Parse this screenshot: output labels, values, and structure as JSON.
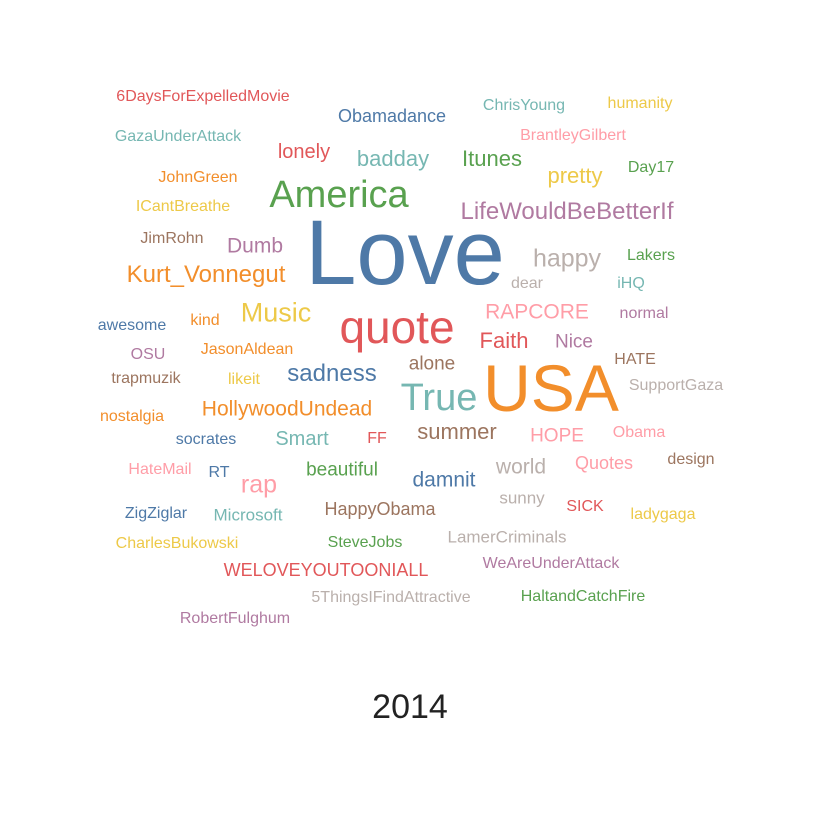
{
  "year_label": "2014",
  "palette": {
    "blue": "#4e79a7",
    "orange": "#f28e2b",
    "red": "#e15759",
    "teal": "#76b7b2",
    "green": "#59a14f",
    "yellow": "#edc948",
    "purple": "#b07aa1",
    "pink": "#ff9da7",
    "brown": "#9c755f",
    "gray": "#bab0ac"
  },
  "words": [
    {
      "text": "Love",
      "weight": 100,
      "color": "blue"
    },
    {
      "text": "USA",
      "weight": 85,
      "color": "orange"
    },
    {
      "text": "quote",
      "weight": 62,
      "color": "red"
    },
    {
      "text": "America",
      "weight": 50,
      "color": "green"
    },
    {
      "text": "True",
      "weight": 46,
      "color": "teal"
    },
    {
      "text": "LifeWouldBeBetterIf",
      "weight": 34,
      "color": "purple"
    },
    {
      "text": "Music",
      "weight": 33,
      "color": "yellow"
    },
    {
      "text": "Kurt_Vonnegut",
      "weight": 30,
      "color": "orange"
    },
    {
      "text": "happy",
      "weight": 30,
      "color": "gray"
    },
    {
      "text": "sadness",
      "weight": 28,
      "color": "blue"
    },
    {
      "text": "summer",
      "weight": 27,
      "color": "brown"
    },
    {
      "text": "HollywoodUndead",
      "weight": 26,
      "color": "orange"
    },
    {
      "text": "rap",
      "weight": 26,
      "color": "pink"
    },
    {
      "text": "pretty",
      "weight": 26,
      "color": "yellow"
    },
    {
      "text": "badday",
      "weight": 26,
      "color": "teal"
    },
    {
      "text": "RAPCORE",
      "weight": 25,
      "color": "pink"
    },
    {
      "text": "Faith",
      "weight": 25,
      "color": "red"
    },
    {
      "text": "Itunes",
      "weight": 25,
      "color": "green"
    },
    {
      "text": "damnit",
      "weight": 24,
      "color": "blue"
    },
    {
      "text": "world",
      "weight": 24,
      "color": "gray"
    },
    {
      "text": "Dumb",
      "weight": 24,
      "color": "purple"
    },
    {
      "text": "Smart",
      "weight": 23,
      "color": "teal"
    },
    {
      "text": "beautiful",
      "weight": 23,
      "color": "green"
    },
    {
      "text": "alone",
      "weight": 23,
      "color": "brown"
    },
    {
      "text": "lonely",
      "weight": 23,
      "color": "red"
    },
    {
      "text": "Nice",
      "weight": 23,
      "color": "purple"
    },
    {
      "text": "HOPE",
      "weight": 22,
      "color": "pink"
    },
    {
      "text": "Obamadance",
      "weight": 21,
      "color": "blue"
    },
    {
      "text": "HappyObama",
      "weight": 21,
      "color": "brown"
    },
    {
      "text": "Quotes",
      "weight": 20,
      "color": "pink"
    },
    {
      "text": "WELOVEYOUTOONIALL",
      "weight": 20,
      "color": "red"
    },
    {
      "text": "sunny",
      "weight": 20,
      "color": "gray"
    },
    {
      "text": "LamerCriminals",
      "weight": 20,
      "color": "gray"
    },
    {
      "text": "SteveJobs",
      "weight": 19,
      "color": "green"
    },
    {
      "text": "Microsoft",
      "weight": 19,
      "color": "teal"
    },
    {
      "text": "JohnGreen",
      "weight": 19,
      "color": "orange"
    },
    {
      "text": "ChrisYoung",
      "weight": 19,
      "color": "teal"
    },
    {
      "text": "ICantBreathe",
      "weight": 19,
      "color": "yellow"
    },
    {
      "text": "JasonAldean",
      "weight": 19,
      "color": "orange"
    },
    {
      "text": "socrates",
      "weight": 19,
      "color": "blue"
    },
    {
      "text": "likeit",
      "weight": 19,
      "color": "yellow"
    },
    {
      "text": "kind",
      "weight": 19,
      "color": "orange"
    },
    {
      "text": "SICK",
      "weight": 19,
      "color": "red"
    },
    {
      "text": "HATE",
      "weight": 18,
      "color": "brown"
    },
    {
      "text": "normal",
      "weight": 18,
      "color": "purple"
    },
    {
      "text": "Obama",
      "weight": 18,
      "color": "pink"
    },
    {
      "text": "iHQ",
      "weight": 18,
      "color": "teal"
    },
    {
      "text": "Day17",
      "weight": 18,
      "color": "green"
    },
    {
      "text": "humanity",
      "weight": 18,
      "color": "yellow"
    },
    {
      "text": "6DaysForExpelledMovie",
      "weight": 18,
      "color": "red"
    },
    {
      "text": "GazaUnderAttack",
      "weight": 18,
      "color": "teal"
    },
    {
      "text": "JimRohn",
      "weight": 18,
      "color": "brown"
    },
    {
      "text": "awesome",
      "weight": 18,
      "color": "blue"
    },
    {
      "text": "OSU",
      "weight": 18,
      "color": "purple"
    },
    {
      "text": "trapmuzik",
      "weight": 18,
      "color": "brown"
    },
    {
      "text": "nostalgia",
      "weight": 18,
      "color": "orange"
    },
    {
      "text": "HateMail",
      "weight": 18,
      "color": "pink"
    },
    {
      "text": "RT",
      "weight": 18,
      "color": "blue"
    },
    {
      "text": "FF",
      "weight": 18,
      "color": "red"
    },
    {
      "text": "ZigZiglar",
      "weight": 18,
      "color": "blue"
    },
    {
      "text": "CharlesBukowski",
      "weight": 18,
      "color": "yellow"
    },
    {
      "text": "RobertFulghum",
      "weight": 18,
      "color": "purple"
    },
    {
      "text": "5ThingsIFindAttractive",
      "weight": 18,
      "color": "gray"
    },
    {
      "text": "HaltandCatchFire",
      "weight": 18,
      "color": "green"
    },
    {
      "text": "WeAreUnderAttack",
      "weight": 18,
      "color": "purple"
    },
    {
      "text": "ladygaga",
      "weight": 18,
      "color": "yellow"
    },
    {
      "text": "design",
      "weight": 18,
      "color": "brown"
    },
    {
      "text": "SupportGaza",
      "weight": 18,
      "color": "gray"
    },
    {
      "text": "Lakers",
      "weight": 18,
      "color": "green"
    },
    {
      "text": "dear",
      "weight": 18,
      "color": "gray"
    },
    {
      "text": "BrantleyGilbert",
      "weight": 18,
      "color": "pink"
    }
  ]
}
